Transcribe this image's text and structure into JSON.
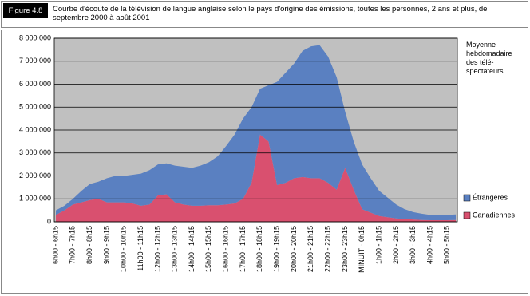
{
  "chart_data": {
    "type": "stacked_area",
    "figure_label": "Figure 4.8",
    "title": "Courbe d'écoute de la télévision de langue anglaise selon le pays d'origine des émissions, toutes les personnes, 2 ans et plus, de septembre 2000 à août 2001",
    "legend_title": "Moyenne hebdomadaire des télé-spectateurs",
    "legend_position": "right",
    "grid": true,
    "background": "#c0c0c0",
    "categories": [
      "6h00 - 6h15",
      null,
      "7h00 - 7h15",
      null,
      "8h00 - 8h15",
      null,
      "9h00 - 9h15",
      null,
      "10h00 - 10h15",
      null,
      "11h00 - 11h15",
      null,
      "12h00 - 12h15",
      null,
      "13h00 - 13h15",
      null,
      "14h00 - 14h15",
      null,
      "15h00 - 15h15",
      null,
      "16h00 - 16h15",
      null,
      "17h00 - 17h15",
      null,
      "18h00 - 18h15",
      null,
      "19h00 - 19h15",
      null,
      "20h00 - 20h15",
      null,
      "21h00 - 21h15",
      null,
      "22h00 - 22h15",
      null,
      "23h00 - 23h15",
      null,
      "MINUIT - 0h15",
      null,
      "1h00 - 1h15",
      null,
      "2h00 - 2h15",
      null,
      "3h00 - 3h15",
      null,
      "4h00 - 4h15",
      null,
      "5h00 - 5h15",
      null
    ],
    "series": [
      {
        "name": "Canadiennes",
        "color": "#d9506f",
        "values": [
          300000,
          500000,
          750000,
          850000,
          950000,
          1000000,
          850000,
          850000,
          850000,
          800000,
          700000,
          750000,
          1150000,
          1200000,
          850000,
          750000,
          700000,
          700000,
          720000,
          720000,
          750000,
          800000,
          1000000,
          1700000,
          3800000,
          3500000,
          1600000,
          1700000,
          1900000,
          1950000,
          1900000,
          1900000,
          1700000,
          1400000,
          2350000,
          1400000,
          550000,
          400000,
          250000,
          200000,
          150000,
          120000,
          100000,
          80000,
          70000,
          70000,
          70000,
          80000
        ]
      },
      {
        "name": "Étrangères",
        "color": "#5a80c1",
        "values": [
          200000,
          200000,
          250000,
          500000,
          700000,
          750000,
          1050000,
          1150000,
          1150000,
          1250000,
          1400000,
          1500000,
          1350000,
          1350000,
          1600000,
          1650000,
          1650000,
          1750000,
          1880000,
          2130000,
          2550000,
          3000000,
          3500000,
          3300000,
          2000000,
          2450000,
          4500000,
          4800000,
          5000000,
          5500000,
          5750000,
          5800000,
          5500000,
          4900000,
          2450000,
          2100000,
          1950000,
          1500000,
          1100000,
          850000,
          600000,
          430000,
          320000,
          270000,
          230000,
          230000,
          230000,
          240000
        ]
      }
    ],
    "ylim": [
      0,
      8000000
    ],
    "yticks": [
      0,
      {
        "value": 1000000,
        "label": "1 000 000"
      },
      {
        "value": 2000000,
        "label": "2 000 000"
      },
      {
        "value": 3000000,
        "label": "3 000 000"
      },
      {
        "value": 4000000,
        "label": "4 000 000"
      },
      {
        "value": 5000000,
        "label": "5 000 000"
      },
      {
        "value": 6000000,
        "label": "6 000 000"
      },
      {
        "value": 7000000,
        "label": "7 000 000"
      },
      {
        "value": 8000000,
        "label": "8 000 000"
      }
    ]
  }
}
